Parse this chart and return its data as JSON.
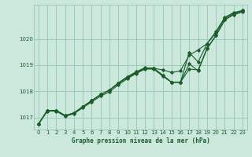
{
  "background_color": "#cce8dc",
  "plot_bg_color": "#cce8dc",
  "grid_color": "#99ccbb",
  "line_color": "#1a5c2a",
  "xlabel": "Graphe pression niveau de la mer (hPa)",
  "xlim": [
    -0.5,
    23.5
  ],
  "ylim": [
    1016.55,
    1021.3
  ],
  "yticks": [
    1017,
    1018,
    1019,
    1020
  ],
  "xticks": [
    0,
    1,
    2,
    3,
    4,
    5,
    6,
    7,
    8,
    9,
    10,
    11,
    12,
    13,
    14,
    15,
    16,
    17,
    18,
    19,
    20,
    21,
    22,
    23
  ],
  "s1": [
    1016.75,
    1017.28,
    1017.28,
    1017.08,
    1017.18,
    1017.42,
    1017.65,
    1017.88,
    1018.05,
    1018.32,
    1018.55,
    1018.72,
    1018.88,
    1018.88,
    1018.82,
    1018.72,
    1018.78,
    1019.38,
    1019.58,
    1019.82,
    1020.22,
    1020.78,
    1020.98,
    1021.08
  ],
  "s2": [
    1016.75,
    1017.28,
    1017.28,
    1017.08,
    1017.18,
    1017.42,
    1017.65,
    1017.88,
    1018.05,
    1018.3,
    1018.52,
    1018.7,
    1018.88,
    1018.88,
    1018.62,
    1018.35,
    1018.35,
    1019.48,
    1019.12,
    1019.82,
    1020.28,
    1020.82,
    1021.0,
    1021.08
  ],
  "s3": [
    1016.75,
    1017.25,
    1017.25,
    1017.05,
    1017.15,
    1017.38,
    1017.6,
    1017.82,
    1017.98,
    1018.25,
    1018.48,
    1018.68,
    1018.85,
    1018.85,
    1018.58,
    1018.35,
    1018.35,
    1019.05,
    1018.78,
    1019.62,
    1020.12,
    1020.72,
    1020.92,
    1021.02
  ],
  "s4": [
    1016.75,
    1017.28,
    1017.28,
    1017.08,
    1017.18,
    1017.42,
    1017.65,
    1017.88,
    1018.05,
    1018.32,
    1018.55,
    1018.75,
    1018.9,
    1018.88,
    1018.62,
    1018.35,
    1018.35,
    1018.85,
    1018.82,
    1019.65,
    1020.12,
    1020.72,
    1020.95,
    1021.05
  ]
}
